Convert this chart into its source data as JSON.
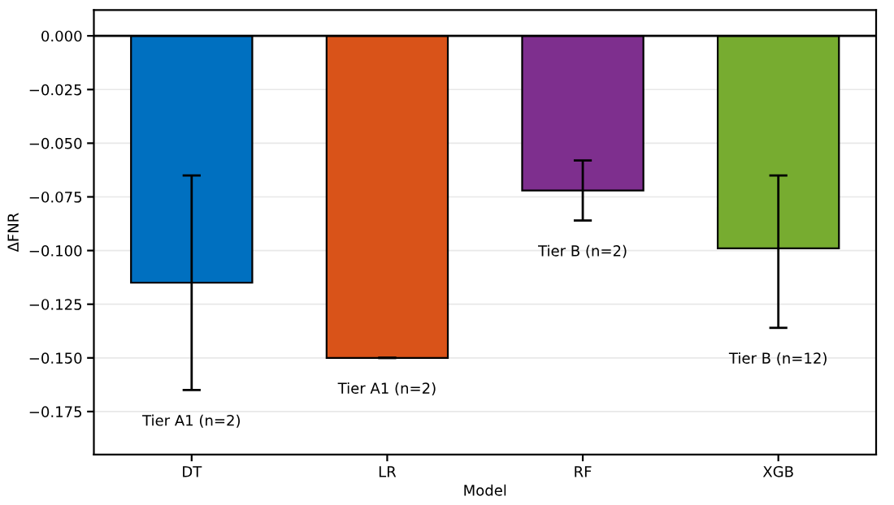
{
  "chart_data": {
    "type": "bar",
    "xlabel": "Model",
    "ylabel": "ΔFNR",
    "categories": [
      "DT",
      "LR",
      "RF",
      "XGB"
    ],
    "values": [
      -0.115,
      -0.15,
      -0.072,
      -0.099
    ],
    "colors": [
      "#0070c0",
      "#d95319",
      "#7e2f8e",
      "#77ac30"
    ],
    "errors": [
      [
        -0.165,
        -0.065
      ],
      [
        -0.15,
        -0.15
      ],
      [
        -0.086,
        -0.058
      ],
      [
        -0.136,
        -0.065
      ]
    ],
    "ylim": [
      -0.195,
      0.012
    ],
    "yticks": [
      {
        "value": 0,
        "label": "0.000"
      },
      {
        "value": -0.025,
        "label": "−0.025"
      },
      {
        "value": -0.05,
        "label": "−0.050"
      },
      {
        "value": -0.075,
        "label": "−0.075"
      },
      {
        "value": -0.1,
        "label": "−0.100"
      },
      {
        "value": -0.125,
        "label": "−0.125"
      },
      {
        "value": -0.15,
        "label": "−0.150"
      },
      {
        "value": -0.175,
        "label": "−0.175"
      }
    ],
    "ref_lines": [
      {
        "axis": "y",
        "value": 0,
        "color": "#000000"
      }
    ],
    "annotations": [
      "Tier A1 (n=2)",
      "Tier A1 (n=2)",
      "Tier B (n=2)",
      "Tier B (n=12)"
    ],
    "grid": "y"
  }
}
